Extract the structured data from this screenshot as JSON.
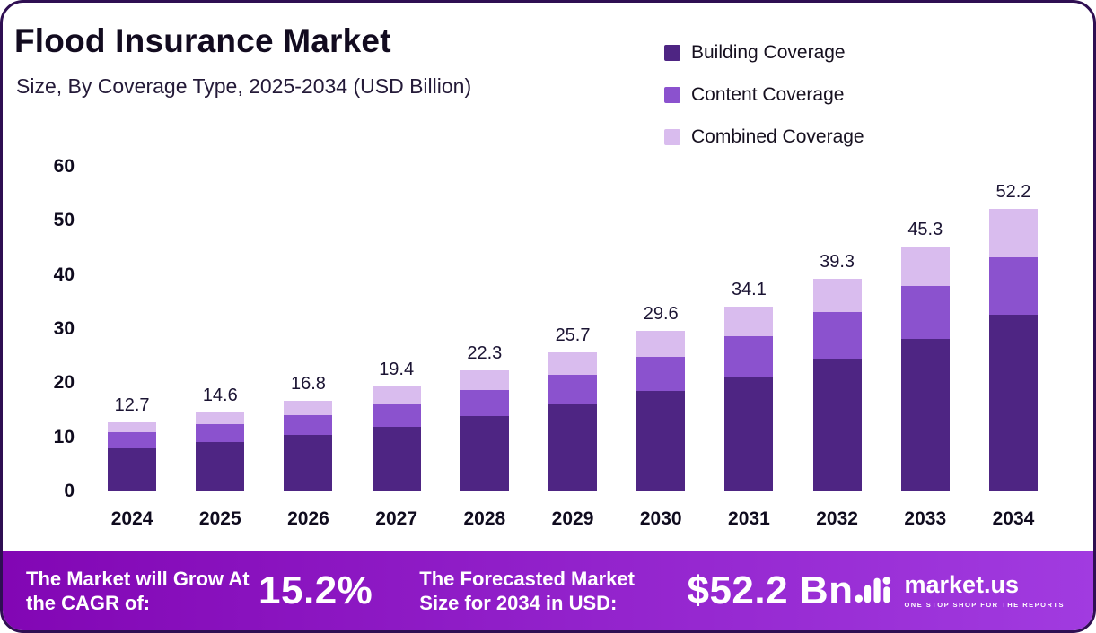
{
  "header": {
    "title": "Flood Insurance Market",
    "subtitle": "Size, By Coverage Type, 2025-2034 (USD Billion)"
  },
  "colors": {
    "building": "#4E2583",
    "content": "#8B52CE",
    "combined": "#D9BCEE",
    "frame_border": "#2F0F52",
    "footer_gradient_left": "#8206B4",
    "footer_gradient_right": "#A13BE0",
    "text_dark": "#120B1F"
  },
  "chart_data": {
    "type": "bar",
    "stacked": true,
    "title": "Flood Insurance Market Size, By Coverage Type, 2025-2034 (USD Billion)",
    "xlabel": "",
    "ylabel": "",
    "ylim": [
      0,
      60
    ],
    "yticks": [
      0,
      10,
      20,
      30,
      40,
      50,
      60
    ],
    "grid": false,
    "legend_position": "top-right",
    "categories": [
      "2024",
      "2025",
      "2026",
      "2027",
      "2028",
      "2029",
      "2030",
      "2031",
      "2032",
      "2033",
      "2034"
    ],
    "series": [
      {
        "name": "Building Coverage",
        "color": "#4E2583",
        "values": [
          8.0,
          9.1,
          10.4,
          11.9,
          13.9,
          16.0,
          18.5,
          21.2,
          24.5,
          28.2,
          32.7
        ]
      },
      {
        "name": "Content Coverage",
        "color": "#8B52CE",
        "values": [
          3.0,
          3.3,
          3.7,
          4.2,
          4.8,
          5.5,
          6.3,
          7.5,
          8.7,
          9.8,
          10.6
        ]
      },
      {
        "name": "Combined Coverage",
        "color": "#D9BCEE",
        "values": [
          1.7,
          2.2,
          2.7,
          3.3,
          3.6,
          4.2,
          4.8,
          5.4,
          6.1,
          7.3,
          8.9
        ]
      }
    ],
    "totals": [
      12.7,
      14.6,
      16.8,
      19.4,
      22.3,
      25.7,
      29.6,
      34.1,
      39.3,
      45.3,
      52.2
    ]
  },
  "footer": {
    "cagr_label": "The Market will Grow At the CAGR of:",
    "cagr_value": "15.2%",
    "forecast_label": "The Forecasted Market Size for 2034 in USD:",
    "forecast_value": "$52.2 Bn",
    "brand_name": "market.us",
    "brand_tagline": "ONE STOP SHOP FOR THE REPORTS"
  }
}
